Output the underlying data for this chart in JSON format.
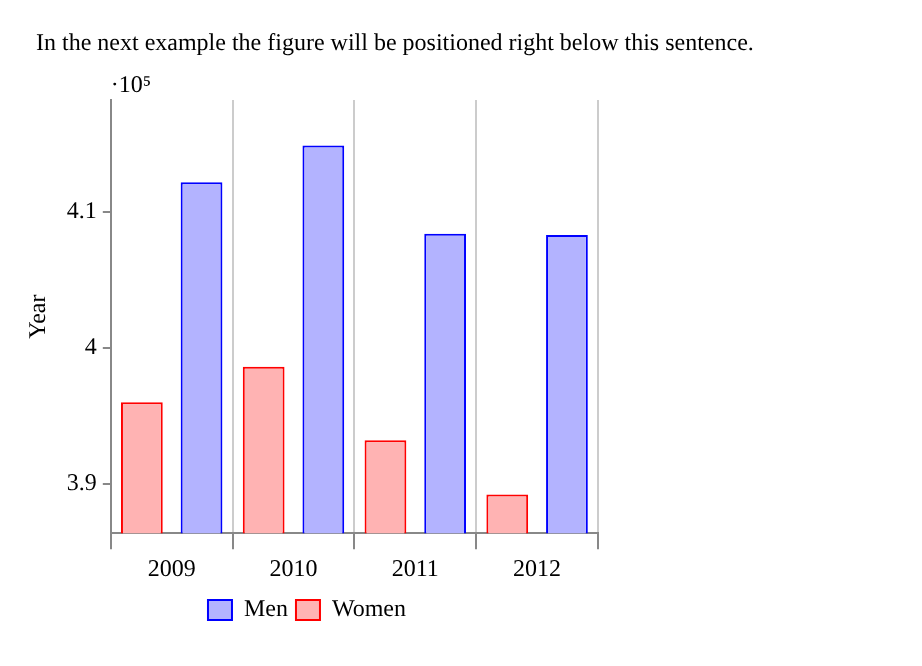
{
  "chart_data": {
    "type": "bar",
    "annotations": [
      "In the next example the figure will be positioned right below this sentence.",
      "·10⁵"
    ],
    "ylabel": "Year",
    "categories": [
      "2009",
      "2010",
      "2011",
      "2012"
    ],
    "series": [
      {
        "name": "Men",
        "color": "#b3b3ff",
        "values": [
          4.122,
          4.149,
          4.084,
          4.083
        ]
      },
      {
        "name": "Women",
        "color": "#ffb3b3",
        "values": [
          3.96,
          3.986,
          3.932,
          3.892
        ]
      }
    ],
    "ylim": [
      3.8635,
      4.1825
    ],
    "yticks": [
      3.9,
      4,
      4.1
    ],
    "grid": "x",
    "legend": "bottom"
  }
}
